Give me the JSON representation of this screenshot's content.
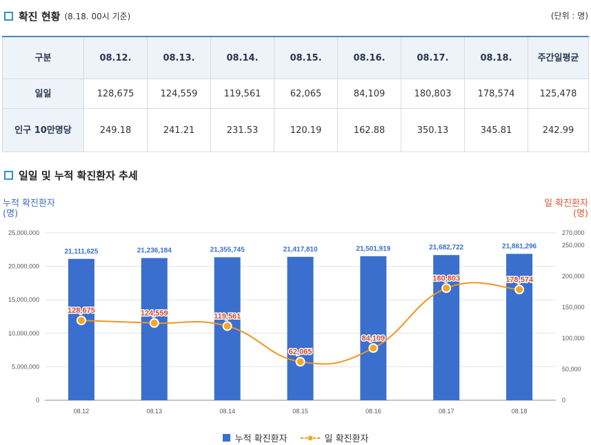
{
  "section1": {
    "title": "확진 현황",
    "subtitle": "(8.18. 00시 기준)",
    "unit": "(단위 : 명)"
  },
  "table": {
    "headers": [
      "구분",
      "08.12.",
      "08.13.",
      "08.14.",
      "08.15.",
      "08.16.",
      "08.17.",
      "08.18.",
      "주간일평균"
    ],
    "rows": [
      {
        "label": "일일",
        "values": [
          "128,675",
          "124,559",
          "119,561",
          "62,065",
          "84,109",
          "180,803",
          "178,574",
          "125,478"
        ]
      },
      {
        "label": "인구 10만명당",
        "values": [
          "249.18",
          "241.21",
          "231.53",
          "120.19",
          "162.88",
          "350.13",
          "345.81",
          "242.99"
        ]
      }
    ]
  },
  "section2": {
    "title": "일일 및 누적 확진환자 추세"
  },
  "axes": {
    "left_label": "누적 확진환자",
    "left_unit": "(명)",
    "right_label": "일 확진환자",
    "right_unit": "(명)"
  },
  "legend": {
    "bar": "누적 확진환자",
    "line": "일 확진환자"
  },
  "colors": {
    "bar": "#3a6fce",
    "line": "#f0961e",
    "marker": "#f5a623",
    "line_label": "#d8452c",
    "bar_label": "#3a6fce"
  },
  "chart_data": {
    "type": "bar+line",
    "categories": [
      "08.12",
      "08.13",
      "08.14",
      "08.15",
      "08.16",
      "08.17",
      "08.18"
    ],
    "series": [
      {
        "name": "누적 확진환자",
        "type": "bar",
        "axis": "left",
        "values": [
          21111625,
          21236184,
          21355745,
          21417810,
          21501919,
          21682722,
          21861296
        ],
        "labels": [
          "21,111,625",
          "21,236,184",
          "21,355,745",
          "21,417,810",
          "21,501,919",
          "21,682,722",
          "21,861,296"
        ]
      },
      {
        "name": "일 확진환자",
        "type": "line",
        "axis": "right",
        "values": [
          128675,
          124559,
          119561,
          62065,
          84109,
          180803,
          178574
        ],
        "labels": [
          "128,675",
          "124,559",
          "119,561",
          "62,065",
          "84,109",
          "180,803",
          "178,574"
        ]
      }
    ],
    "left_ylim": [
      0,
      25000000
    ],
    "left_ticks": [
      "0",
      "5,000,000",
      "10,000,000",
      "15,000,000",
      "20,000,000",
      "25,000,000"
    ],
    "right_ylim": [
      0,
      270000
    ],
    "right_ticks": [
      "0",
      "50,000",
      "100,000",
      "150,000",
      "200,000",
      "250,000",
      "270,000"
    ],
    "right_tick_values": [
      0,
      50000,
      100000,
      150000,
      200000,
      250000,
      270000
    ]
  }
}
